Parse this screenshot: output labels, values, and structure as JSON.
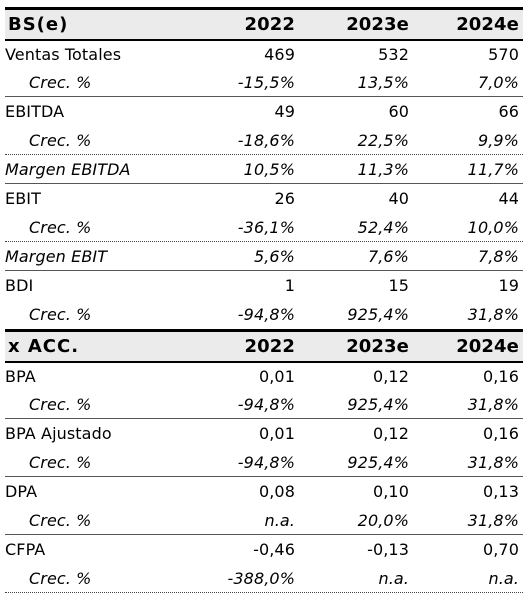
{
  "headers": [
    {
      "label": "BS(e)",
      "y1": "2022",
      "y2": "2023e",
      "y3": "2024e"
    },
    {
      "label": "x ACC.",
      "y1": "2022",
      "y2": "2023e",
      "y3": "2024e"
    }
  ],
  "rows": [
    {
      "label": "Ventas Totales",
      "v1": "469",
      "v2": "532",
      "v3": "570"
    },
    {
      "label": "Crec. %",
      "v1": "-15,5%",
      "v2": "13,5%",
      "v3": "7,0%"
    },
    {
      "label": "EBITDA",
      "v1": "49",
      "v2": "60",
      "v3": "66"
    },
    {
      "label": "Crec. %",
      "v1": "-18,6%",
      "v2": "22,5%",
      "v3": "9,9%"
    },
    {
      "label": "Margen EBITDA",
      "v1": "10,5%",
      "v2": "11,3%",
      "v3": "11,7%"
    },
    {
      "label": "EBIT",
      "v1": "26",
      "v2": "40",
      "v3": "44"
    },
    {
      "label": "Crec. %",
      "v1": "-36,1%",
      "v2": "52,4%",
      "v3": "10,0%"
    },
    {
      "label": "Margen EBIT",
      "v1": "5,6%",
      "v2": "7,6%",
      "v3": "7,8%"
    },
    {
      "label": "BDI",
      "v1": "1",
      "v2": "15",
      "v3": "19"
    },
    {
      "label": "Crec. %",
      "v1": "-94,8%",
      "v2": "925,4%",
      "v3": "31,8%"
    },
    {
      "label": "BPA",
      "v1": "0,01",
      "v2": "0,12",
      "v3": "0,16"
    },
    {
      "label": "Crec. %",
      "v1": "-94,8%",
      "v2": "925,4%",
      "v3": "31,8%"
    },
    {
      "label": "BPA Ajustado",
      "v1": "0,01",
      "v2": "0,12",
      "v3": "0,16"
    },
    {
      "label": "Crec. %",
      "v1": "-94,8%",
      "v2": "925,4%",
      "v3": "31,8%"
    },
    {
      "label": "DPA",
      "v1": "0,08",
      "v2": "0,10",
      "v3": "0,13"
    },
    {
      "label": "Crec. %",
      "v1": "n.a.",
      "v2": "20,0%",
      "v3": "31,8%"
    },
    {
      "label": "CFPA",
      "v1": "-0,46",
      "v2": "-0,13",
      "v3": "0,70"
    },
    {
      "label": "Crec. %",
      "v1": "-388,0%",
      "v2": "n.a.",
      "v3": "n.a."
    }
  ]
}
